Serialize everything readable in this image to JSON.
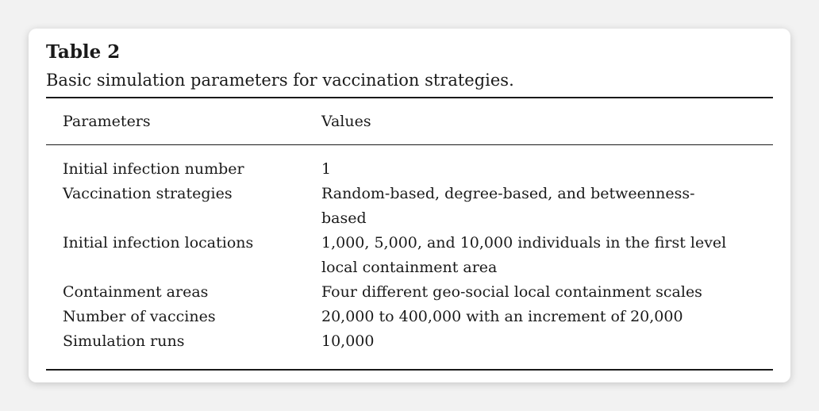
{
  "table": {
    "label": "Table 2",
    "caption": "Basic simulation parameters for vaccination strategies.",
    "columns": [
      "Parameters",
      "Values"
    ],
    "rows": [
      {
        "parameter": "Initial infection number",
        "value": "1"
      },
      {
        "parameter": "Vaccination strategies",
        "value": "Random-based, degree-based, and betweenness-based"
      },
      {
        "parameter": "Initial infection locations",
        "value": "1,000, 5,000, and 10,000 individuals in the first level local containment area"
      },
      {
        "parameter": "Containment areas",
        "value": "Four different geo-social local containment scales"
      },
      {
        "parameter": "Number of vaccines",
        "value": "20,000 to 400,000 with an increment of 20,000"
      },
      {
        "parameter": "Simulation runs",
        "value": "10,000"
      }
    ]
  }
}
